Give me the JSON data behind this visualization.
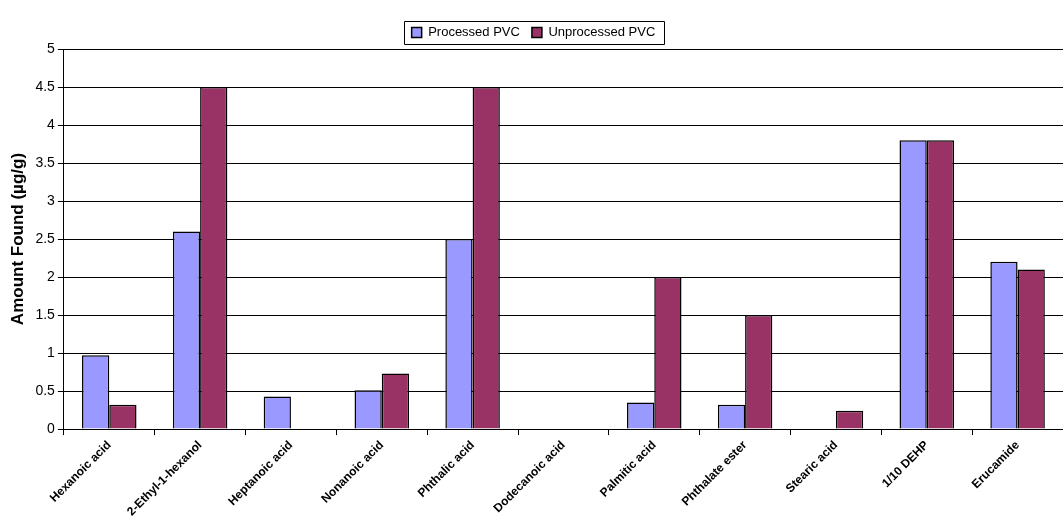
{
  "chart_data": {
    "type": "bar",
    "ylabel": "Amount Found (µg/g)",
    "categories": [
      "Hexanoic acid",
      "2-Ethyl-1-hexanol",
      "Heptanoic acid",
      "Nonanoic acid",
      "Phthalic acid",
      "Dodecanoic acid",
      "Palmitic acid",
      "Phthalate ester",
      "Stearic acid",
      "1/10 DEHP",
      "Erucamide"
    ],
    "series": [
      {
        "name": "Processed PVC",
        "color": "#9999ff",
        "values": [
          0.97,
          2.6,
          0.43,
          0.51,
          2.5,
          null,
          0.35,
          0.32,
          null,
          3.8,
          2.2
        ]
      },
      {
        "name": "Unprocessed PVC",
        "color": "#993366",
        "values": [
          0.32,
          4.5,
          null,
          0.73,
          4.5,
          null,
          2.0,
          1.5,
          0.24,
          3.8,
          2.1
        ]
      }
    ],
    "ylim": [
      0,
      5
    ],
    "yticks": [
      0,
      0.5,
      1,
      1.5,
      2,
      2.5,
      3,
      3.5,
      4,
      4.5,
      5
    ],
    "grid": "y",
    "legend": "top"
  }
}
